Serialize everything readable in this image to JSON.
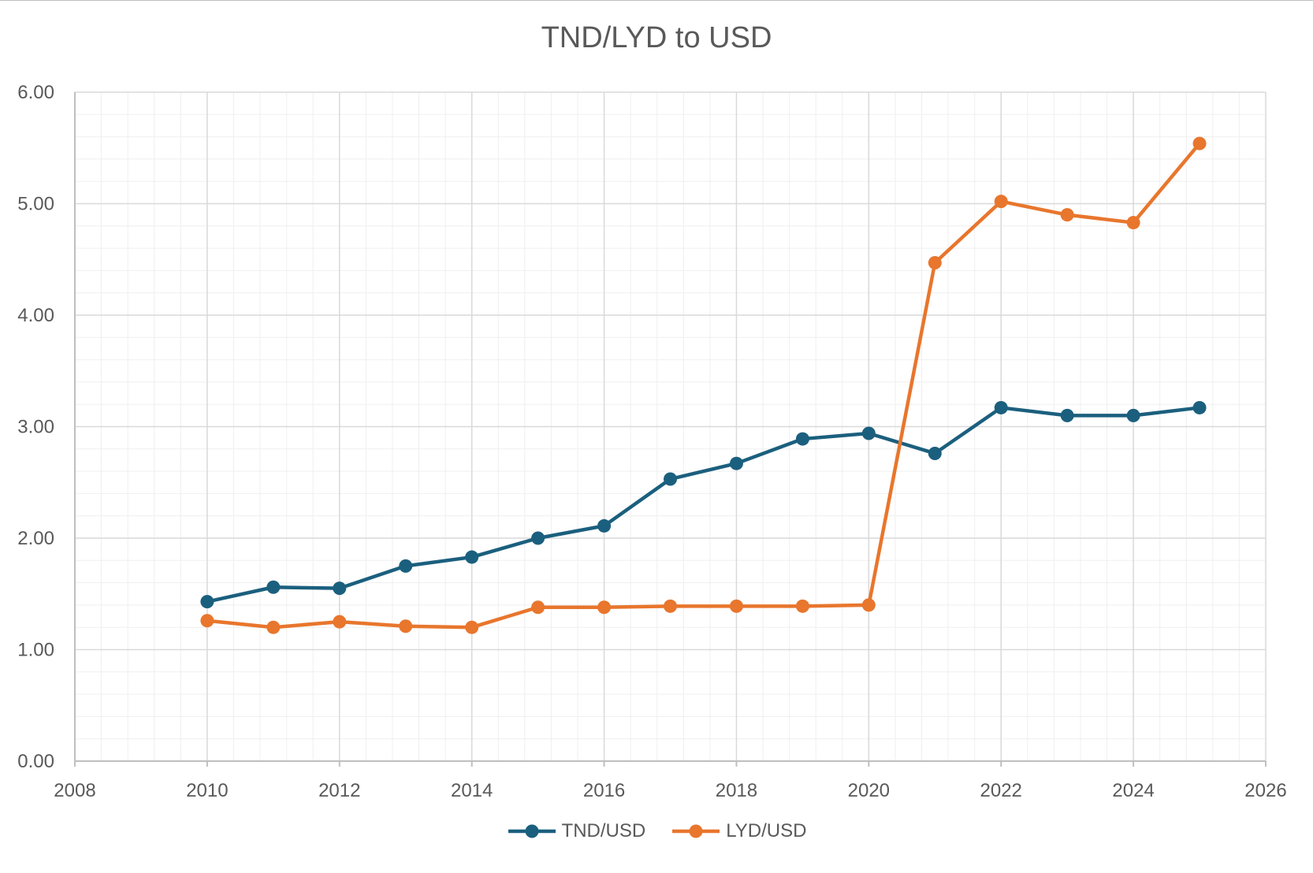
{
  "chart_data": {
    "type": "line",
    "title": "TND/LYD to USD",
    "xlabel": "",
    "ylabel": "",
    "xlim": [
      2008,
      2026
    ],
    "ylim": [
      0,
      6
    ],
    "x_ticks": [
      2008,
      2010,
      2012,
      2014,
      2016,
      2018,
      2020,
      2022,
      2024,
      2026
    ],
    "y_ticks": [
      "0.00",
      "1.00",
      "2.00",
      "3.00",
      "4.00",
      "5.00",
      "6.00"
    ],
    "grid": true,
    "legend_position": "bottom",
    "x": [
      2010,
      2011,
      2012,
      2013,
      2014,
      2015,
      2016,
      2017,
      2018,
      2019,
      2020,
      2021,
      2022,
      2023,
      2024,
      2025
    ],
    "series": [
      {
        "name": "TND/USD",
        "color": "#1b5f7e",
        "values": [
          1.43,
          1.56,
          1.55,
          1.75,
          1.83,
          2.0,
          2.11,
          2.53,
          2.67,
          2.89,
          2.94,
          2.76,
          3.17,
          3.1,
          3.1,
          3.17
        ]
      },
      {
        "name": "LYD/USD",
        "color": "#e8762d",
        "values": [
          1.26,
          1.2,
          1.25,
          1.21,
          1.2,
          1.38,
          1.38,
          1.39,
          1.39,
          1.39,
          1.4,
          4.47,
          5.02,
          4.9,
          4.83,
          5.54
        ]
      }
    ]
  }
}
